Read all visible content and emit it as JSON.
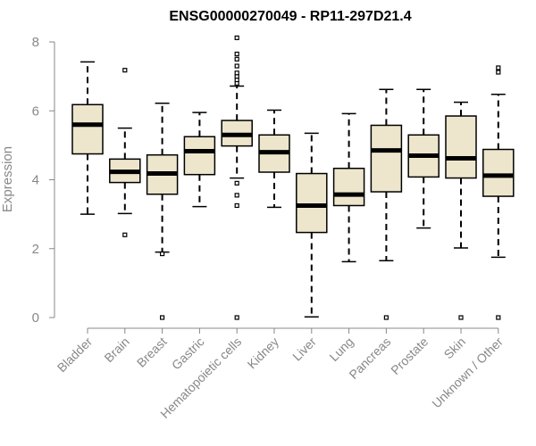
{
  "chart_data": {
    "type": "box",
    "title": "ENSG00000270049 - RP11-297D21.4",
    "ylabel": "Expression",
    "xlabel": "",
    "ylim": [
      0,
      8
    ],
    "yticks": [
      "0",
      "2",
      "4",
      "6",
      "8"
    ],
    "box_fill": "#ede6cc",
    "median_color": "#000000",
    "axis_color": "#888888",
    "categories": [
      "Bladder",
      "Brain",
      "Breast",
      "Gastric",
      "Hematopoietic cells",
      "Kidney",
      "Liver",
      "Lung",
      "Pancreas",
      "Prostate",
      "Skin",
      "Unknown / Other"
    ],
    "boxes": [
      {
        "min": 3.0,
        "q1": 4.75,
        "median": 5.6,
        "q3": 6.18,
        "max": 7.42,
        "outliers": []
      },
      {
        "min": 3.02,
        "q1": 3.92,
        "median": 4.23,
        "q3": 4.6,
        "max": 5.5,
        "outliers": [
          2.4,
          7.18
        ]
      },
      {
        "min": 1.9,
        "q1": 3.58,
        "median": 4.18,
        "q3": 4.72,
        "max": 6.22,
        "outliers": [
          1.85,
          0.0
        ]
      },
      {
        "min": 3.22,
        "q1": 4.15,
        "median": 4.83,
        "q3": 5.25,
        "max": 5.95,
        "outliers": []
      },
      {
        "min": 4.05,
        "q1": 4.98,
        "median": 5.3,
        "q3": 5.72,
        "max": 6.72,
        "outliers": [
          6.8,
          6.9,
          7.0,
          7.1,
          7.3,
          7.5,
          7.65,
          8.12,
          3.9,
          3.55,
          3.25,
          0.0
        ]
      },
      {
        "min": 3.2,
        "q1": 4.22,
        "median": 4.8,
        "q3": 5.3,
        "max": 6.02,
        "outliers": []
      },
      {
        "min": 0.02,
        "q1": 2.47,
        "median": 3.25,
        "q3": 4.18,
        "max": 5.35,
        "outliers": []
      },
      {
        "min": 1.62,
        "q1": 3.25,
        "median": 3.57,
        "q3": 4.33,
        "max": 5.92,
        "outliers": []
      },
      {
        "min": 1.65,
        "q1": 3.65,
        "median": 4.85,
        "q3": 5.58,
        "max": 6.62,
        "outliers": [
          0.0
        ]
      },
      {
        "min": 2.6,
        "q1": 4.08,
        "median": 4.7,
        "q3": 5.3,
        "max": 6.62,
        "outliers": []
      },
      {
        "min": 2.02,
        "q1": 4.05,
        "median": 4.62,
        "q3": 5.85,
        "max": 6.25,
        "outliers": [
          0.0
        ]
      },
      {
        "min": 1.75,
        "q1": 3.52,
        "median": 4.12,
        "q3": 4.88,
        "max": 6.48,
        "outliers": [
          7.12,
          7.25,
          0.0
        ]
      }
    ]
  }
}
